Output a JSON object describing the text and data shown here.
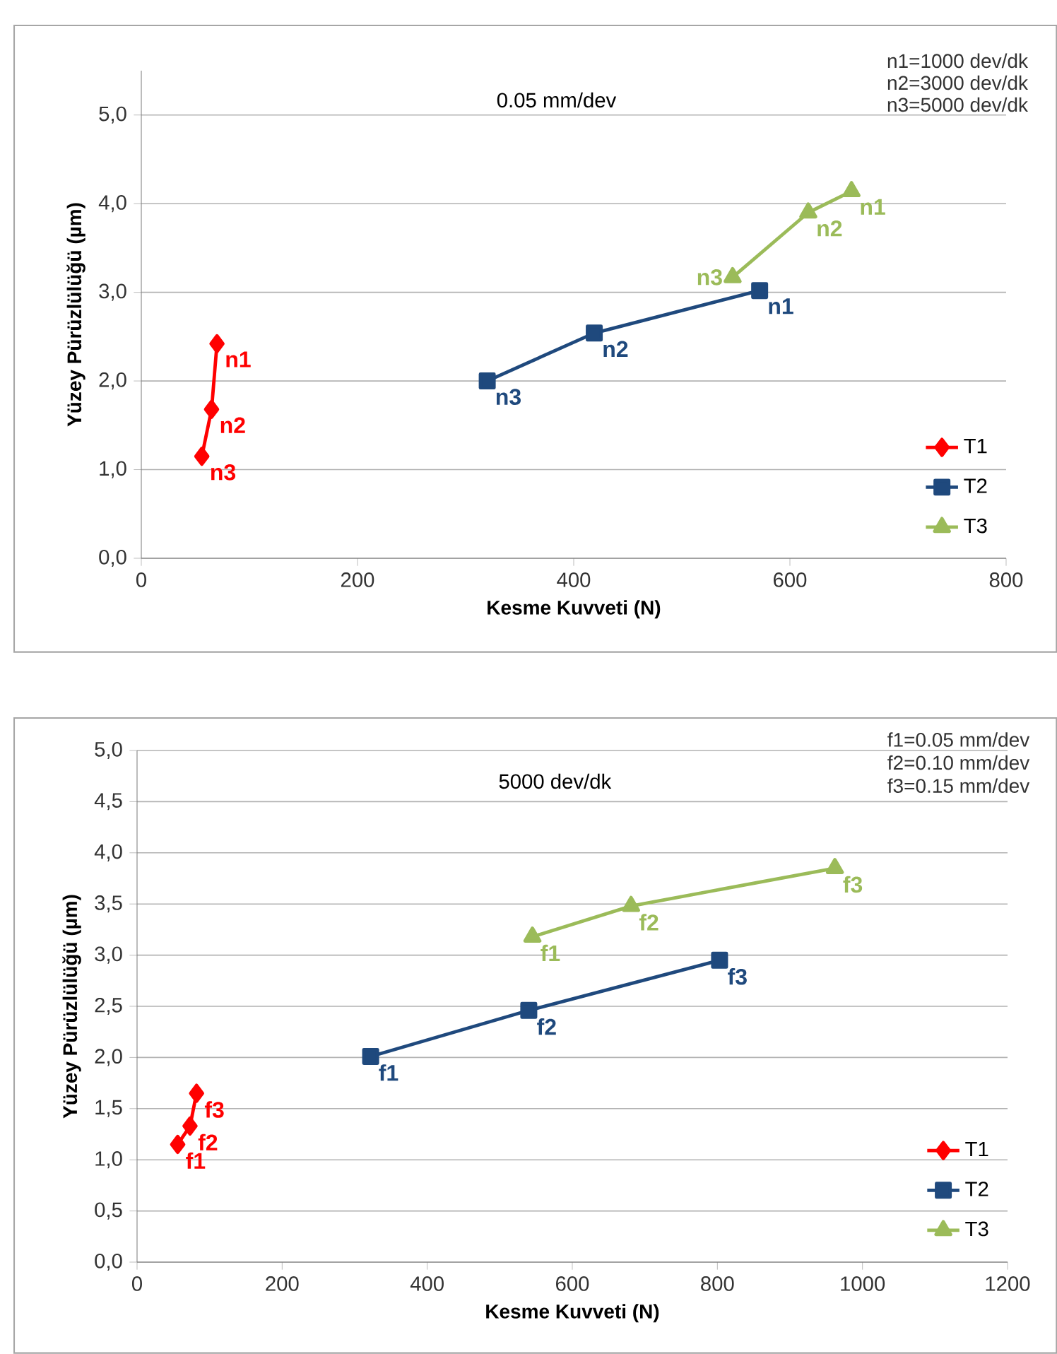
{
  "chart_data": [
    {
      "type": "line",
      "subtitle": "0.05 mm/dev",
      "xlabel": "Kesme Kuvveti (N)",
      "ylabel": "Yüzey Pürüzlülüğü  (µm)",
      "annotations": [
        "n1=1000 dev/dk",
        "n2=3000 dev/dk",
        "n3=5000 dev/dk"
      ],
      "xlim": [
        0,
        800
      ],
      "xticks": [
        0,
        200,
        400,
        600,
        800
      ],
      "ylim": [
        0,
        5.5
      ],
      "yticks": [
        {
          "value": 0,
          "label": "0,0"
        },
        {
          "value": 1,
          "label": "1,0"
        },
        {
          "value": 2,
          "label": "2,0"
        },
        {
          "value": 3,
          "label": "3,0"
        },
        {
          "value": 4,
          "label": "4,0"
        },
        {
          "value": 5,
          "label": "5,0"
        }
      ],
      "grid": "y",
      "legend": "bottom right",
      "series": [
        {
          "name": "T1",
          "color": "#ff0000",
          "marker": "diamond",
          "x": [
            70,
            65,
            56
          ],
          "values": [
            2.42,
            1.68,
            1.15
          ],
          "value_labels": [
            "n1",
            "n2",
            "n3"
          ]
        },
        {
          "name": "T2",
          "color": "#1f497d",
          "marker": "square",
          "x": [
            572,
            419,
            320
          ],
          "values": [
            3.02,
            2.54,
            2.0
          ],
          "value_labels": [
            "n1",
            "n2",
            "n3"
          ]
        },
        {
          "name": "T3",
          "color": "#9bbb59",
          "marker": "triangle",
          "x": [
            657,
            617,
            547
          ],
          "values": [
            4.14,
            3.9,
            3.17
          ],
          "value_labels": [
            "n1",
            "n2",
            "n3"
          ]
        }
      ]
    },
    {
      "type": "line",
      "subtitle": "5000 dev/dk",
      "xlabel": "Kesme Kuvveti (N)",
      "ylabel": "Yüzey Pürüzlülüğü  (µm)",
      "annotations": [
        "f1=0.05 mm/dev",
        "f2=0.10 mm/dev",
        "f3=0.15 mm/dev"
      ],
      "xlim": [
        0,
        1200
      ],
      "xticks": [
        0,
        200,
        400,
        600,
        800,
        1000,
        1200
      ],
      "ylim": [
        0,
        5
      ],
      "yticks": [
        {
          "value": 0,
          "label": "0,0"
        },
        {
          "value": 0.5,
          "label": "0,5"
        },
        {
          "value": 1,
          "label": "1,0"
        },
        {
          "value": 1.5,
          "label": "1,5"
        },
        {
          "value": 2,
          "label": "2,0"
        },
        {
          "value": 2.5,
          "label": "2,5"
        },
        {
          "value": 3,
          "label": "3,0"
        },
        {
          "value": 3.5,
          "label": "3,5"
        },
        {
          "value": 4,
          "label": "4,0"
        },
        {
          "value": 4.5,
          "label": "4,5"
        },
        {
          "value": 5,
          "label": "5,0"
        }
      ],
      "grid": "y",
      "legend": "bottom right",
      "series": [
        {
          "name": "T1",
          "color": "#ff0000",
          "marker": "diamond",
          "x": [
            56,
            73,
            82
          ],
          "values": [
            1.15,
            1.33,
            1.65
          ],
          "value_labels": [
            "f1",
            "f2",
            "f3"
          ]
        },
        {
          "name": "T2",
          "color": "#1f497d",
          "marker": "square",
          "x": [
            322,
            540,
            803
          ],
          "values": [
            2.01,
            2.46,
            2.95
          ],
          "value_labels": [
            "f1",
            "f2",
            "f3"
          ]
        },
        {
          "name": "T3",
          "color": "#9bbb59",
          "marker": "triangle",
          "x": [
            545,
            681,
            962
          ],
          "values": [
            3.18,
            3.48,
            3.85
          ],
          "value_labels": [
            "f1",
            "f2",
            "f3"
          ]
        }
      ]
    }
  ]
}
